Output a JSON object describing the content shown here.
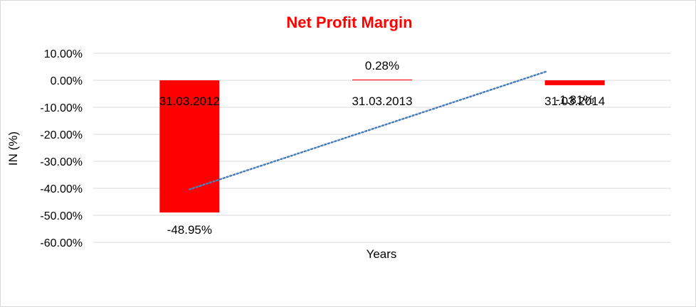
{
  "chart_data": {
    "type": "bar",
    "title": "Net Profit Margin",
    "xlabel": "Years",
    "ylabel": "IN (%)",
    "categories": [
      "31.03.2012",
      "31.03.2013",
      "31.03.2014"
    ],
    "series": [
      {
        "values": [
          -48.95,
          0.28,
          -1.81
        ]
      }
    ],
    "data_labels": [
      "-48.95%",
      "0.28%",
      "-1.81%"
    ],
    "ylim": [
      -60,
      10
    ],
    "yticks": [
      10,
      0,
      -10,
      -20,
      -30,
      -40,
      -50,
      -60
    ],
    "ytick_labels": [
      "10.00%",
      "0.00%",
      "-10.00%",
      "-20.00%",
      "-30.00%",
      "-40.00%",
      "-50.00%",
      "-60.00%"
    ],
    "trendline": {
      "type": "linear",
      "style": "dotted",
      "color": "#4a7ebb"
    },
    "grid": true,
    "legend": "none",
    "colors": {
      "bar": "#ff0000",
      "title": "#ff0000",
      "grid": "#d9d9d9"
    }
  }
}
